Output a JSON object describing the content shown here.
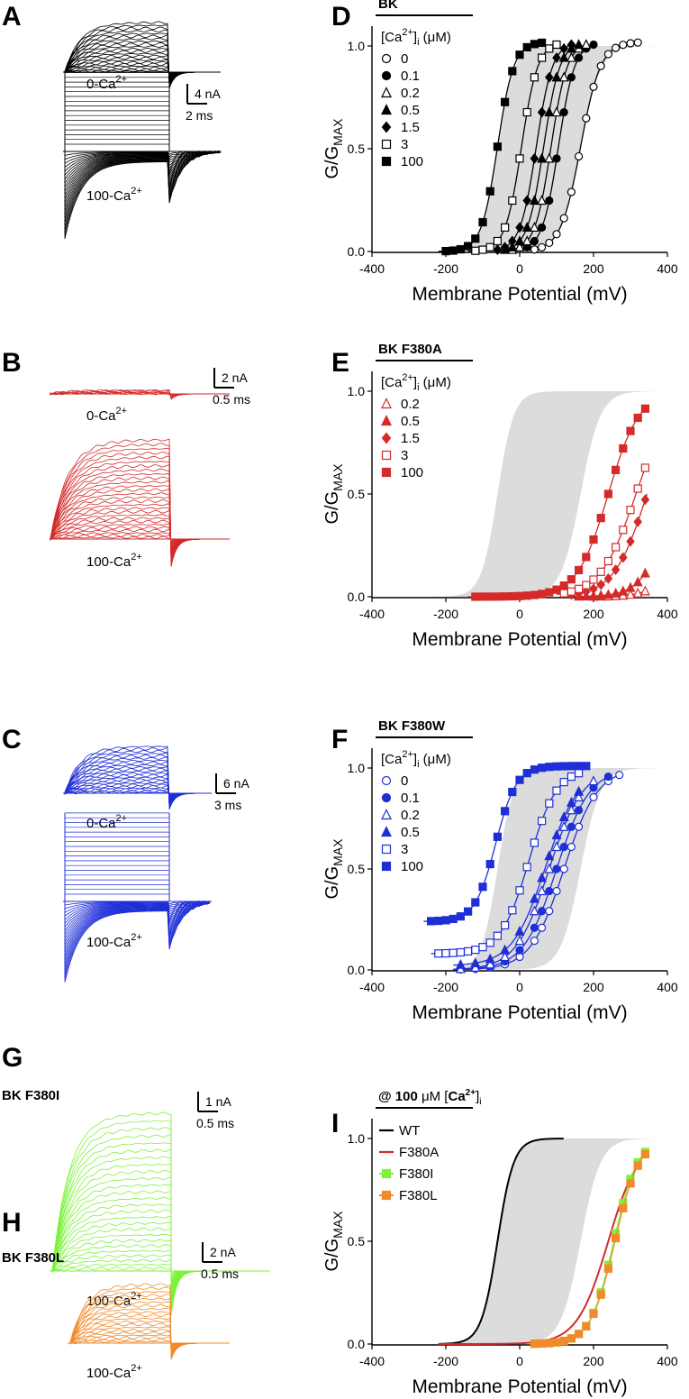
{
  "panels": {
    "A": {
      "label": "A",
      "top": "0-Ca",
      "bottom": "100-Ca",
      "scale_i": "4 nA",
      "scale_t": "2 ms",
      "color": "#000000"
    },
    "B": {
      "label": "B",
      "top": "0-Ca",
      "bottom": "100-Ca",
      "scale_i": "2 nA",
      "scale_t": "0.5 ms",
      "color": "#d42a2a"
    },
    "C": {
      "label": "C",
      "top": "0-Ca",
      "bottom": "100-Ca",
      "scale_i": "6 nA",
      "scale_t": "3 ms",
      "color": "#1f2fd6"
    },
    "G": {
      "label": "G",
      "title": "BK F380I",
      "bottom": "100-Ca",
      "scale_i": "1 nA",
      "scale_t": "0.5 ms",
      "color": "#7cf23a"
    },
    "H": {
      "label": "H",
      "title": "BK F380L",
      "bottom": "100-Ca",
      "scale_i": "2 nA",
      "scale_t": "0.5 ms",
      "color": "#f08a2a"
    }
  },
  "chart_data": [
    {
      "label": "D",
      "type": "scatter",
      "title": "BK",
      "color": "#000000",
      "legend_title": "[Ca]i (μM)",
      "xlabel": "Membrane Potential (mV)",
      "ylabel": "G/GMAX",
      "xlim": [
        -400,
        400
      ],
      "ylim": [
        0,
        1.1
      ],
      "xticks": [
        -400,
        -200,
        0,
        200,
        400
      ],
      "yticks": [
        0.0,
        0.5,
        1.0
      ],
      "series": [
        {
          "name": "0",
          "marker": "circle",
          "fill": "open",
          "v": 165,
          "k": 27,
          "ymin": 0,
          "ymax": 1.02,
          "x": [
            40,
            60,
            80,
            100,
            120,
            140,
            160,
            180,
            200,
            220,
            240,
            260,
            280,
            300,
            320
          ]
        },
        {
          "name": "0.1",
          "marker": "circle",
          "fill": "filled",
          "v": 105,
          "k": 22,
          "ymin": 0,
          "ymax": 1.02,
          "x": [
            20,
            40,
            60,
            80,
            100,
            120,
            140,
            160,
            180,
            200
          ]
        },
        {
          "name": "0.2",
          "marker": "triangle",
          "fill": "open",
          "v": 85,
          "k": 22,
          "ymin": 0,
          "ymax": 1.02,
          "x": [
            -20,
            0,
            20,
            40,
            60,
            80,
            100,
            120,
            140,
            160,
            180
          ]
        },
        {
          "name": "0.5",
          "marker": "triangle",
          "fill": "filled",
          "v": 65,
          "k": 22,
          "ymin": 0,
          "ymax": 1.02,
          "x": [
            -40,
            -20,
            0,
            20,
            40,
            60,
            80,
            100,
            120,
            140,
            160
          ]
        },
        {
          "name": "1.5",
          "marker": "diamond",
          "fill": "filled",
          "v": 45,
          "k": 22,
          "ymin": 0,
          "ymax": 1.02,
          "x": [
            -60,
            -40,
            -20,
            0,
            20,
            40,
            60,
            80,
            100,
            120,
            140
          ]
        },
        {
          "name": "3",
          "marker": "square",
          "fill": "open",
          "v": 5,
          "k": 22,
          "ymin": 0,
          "ymax": 1.02,
          "x": [
            -120,
            -100,
            -80,
            -60,
            -40,
            -20,
            0,
            20,
            40,
            60,
            80,
            100
          ]
        },
        {
          "name": "100",
          "marker": "square",
          "fill": "filled",
          "v": -60,
          "k": 22,
          "ymin": 0,
          "ymax": 1.02,
          "x": [
            -200,
            -180,
            -160,
            -140,
            -120,
            -100,
            -80,
            -60,
            -40,
            -20,
            0,
            20,
            40,
            60
          ]
        }
      ]
    },
    {
      "label": "E",
      "type": "scatter",
      "title": "BK F380A",
      "color": "#d42a2a",
      "legend_title": "[Ca]i (μM)",
      "xlabel": "Membrane Potential (mV)",
      "ylabel": "G/GMAX",
      "xlim": [
        -400,
        400
      ],
      "ylim": [
        0,
        1.1
      ],
      "xticks": [
        -400,
        -200,
        0,
        200,
        400
      ],
      "yticks": [
        0.0,
        0.5,
        1.0
      ],
      "series": [
        {
          "name": "0.2",
          "marker": "triangle",
          "fill": "open",
          "v": 500,
          "k": 40,
          "ymin": 0,
          "ymax": 1.5,
          "x": [
            200,
            220,
            240,
            260,
            280,
            300,
            320,
            340
          ]
        },
        {
          "name": "0.5",
          "marker": "triangle",
          "fill": "filled",
          "v": 440,
          "k": 40,
          "ymin": 0,
          "ymax": 1.5,
          "x": [
            160,
            180,
            200,
            220,
            240,
            260,
            280,
            300,
            320,
            340
          ]
        },
        {
          "name": "1.5",
          "marker": "diamond",
          "fill": "filled",
          "v": 345,
          "k": 45,
          "ymin": 0,
          "ymax": 1.0,
          "x": [
            140,
            160,
            180,
            200,
            220,
            240,
            260,
            280,
            300,
            320,
            340
          ]
        },
        {
          "name": "3",
          "marker": "square",
          "fill": "open",
          "v": 315,
          "k": 48,
          "ymin": 0,
          "ymax": 1.0,
          "x": [
            120,
            140,
            160,
            180,
            200,
            220,
            240,
            260,
            280,
            300,
            320,
            340
          ]
        },
        {
          "name": "100",
          "marker": "square",
          "fill": "filled",
          "v": 240,
          "k": 42,
          "ymin": 0,
          "ymax": 1.0,
          "x": [
            -120,
            -100,
            -80,
            -60,
            -40,
            -20,
            0,
            20,
            40,
            60,
            80,
            100,
            120,
            140,
            160,
            180,
            200,
            220,
            240,
            260,
            280,
            300,
            320,
            340
          ]
        }
      ]
    },
    {
      "label": "F",
      "type": "scatter",
      "title": "BK F380W",
      "color": "#1f2fd6",
      "legend_title": "[Ca]i (μM)",
      "xlabel": "Membrane Potential (mV)",
      "ylabel": "G/GMAX",
      "xlim": [
        -400,
        400
      ],
      "ylim": [
        0,
        1.1
      ],
      "xticks": [
        -400,
        -200,
        0,
        200,
        400
      ],
      "yticks": [
        0.0,
        0.5,
        1.0
      ],
      "series": [
        {
          "name": "0",
          "marker": "circle",
          "fill": "open",
          "v": 120,
          "k": 45,
          "ymin": 0,
          "ymax": 1.0,
          "x": [
            -160,
            -120,
            -80,
            -40,
            0,
            40,
            60,
            80,
            100,
            120,
            140,
            160,
            200,
            240,
            270
          ]
        },
        {
          "name": "0.1",
          "marker": "circle",
          "fill": "filled",
          "v": 100,
          "k": 45,
          "ymin": 0,
          "ymax": 1.0,
          "x": [
            -160,
            -120,
            -80,
            -40,
            0,
            40,
            60,
            80,
            100,
            120,
            140,
            160,
            200,
            240
          ]
        },
        {
          "name": "0.2",
          "marker": "triangle",
          "fill": "open",
          "v": 80,
          "k": 45,
          "ymin": 0,
          "ymax": 1.0,
          "x": [
            -160,
            -120,
            -80,
            -40,
            0,
            40,
            60,
            80,
            100,
            120,
            140,
            160,
            200
          ]
        },
        {
          "name": "0.5",
          "marker": "triangle",
          "fill": "filled",
          "v": 70,
          "k": 45,
          "ymin": 0.02,
          "ymax": 1.0,
          "x": [
            -160,
            -120,
            -80,
            -40,
            0,
            40,
            60,
            80,
            100,
            120,
            140,
            160
          ]
        },
        {
          "name": "3",
          "marker": "square",
          "fill": "open",
          "v": 25,
          "k": 38,
          "ymin": 0.08,
          "ymax": 1.0,
          "x": [
            -220,
            -200,
            -180,
            -160,
            -140,
            -120,
            -100,
            -80,
            -60,
            -40,
            -20,
            0,
            20,
            40,
            60,
            80,
            100,
            120,
            140,
            160
          ]
        },
        {
          "name": "100",
          "marker": "square",
          "fill": "filled",
          "v": -65,
          "k": 28,
          "ymin": 0.24,
          "ymax": 1.01,
          "x": [
            -240,
            -220,
            -200,
            -180,
            -160,
            -140,
            -120,
            -100,
            -80,
            -60,
            -40,
            -20,
            0,
            20,
            40,
            60,
            80,
            100,
            120,
            140,
            160,
            180
          ]
        }
      ]
    },
    {
      "label": "I",
      "type": "line",
      "title": "@ 100 μM [Ca]i",
      "color": "#000000",
      "xlabel": "Membrane Potential (mV)",
      "ylabel": "G/GMAX",
      "xlim": [
        -400,
        400
      ],
      "ylim": [
        0,
        1.1
      ],
      "xticks": [
        -400,
        -200,
        0,
        200,
        400
      ],
      "yticks": [
        0.0,
        0.5,
        1.0
      ],
      "series": [
        {
          "name": "WT",
          "marker": "line",
          "color": "#000000",
          "v": -60,
          "k": 22,
          "ymin": 0,
          "ymax": 1.0
        },
        {
          "name": "F380A",
          "marker": "line",
          "color": "#d42a2a",
          "v": 240,
          "k": 42,
          "ymin": 0,
          "ymax": 1.0
        },
        {
          "name": "F380I",
          "marker": "square",
          "fill": "filled",
          "color": "#7cf23a",
          "v": 255,
          "k": 32,
          "ymin": 0,
          "ymax": 1.0,
          "x": [
            40,
            60,
            80,
            100,
            120,
            140,
            160,
            180,
            200,
            220,
            240,
            260,
            280,
            300,
            320,
            340
          ]
        },
        {
          "name": "F380L",
          "marker": "square",
          "fill": "filled",
          "color": "#f08a2a",
          "v": 258,
          "k": 33,
          "ymin": 0,
          "ymax": 1.0,
          "x": [
            40,
            60,
            80,
            100,
            120,
            140,
            160,
            180,
            200,
            220,
            240,
            260,
            280,
            300,
            320,
            340
          ]
        }
      ]
    }
  ]
}
